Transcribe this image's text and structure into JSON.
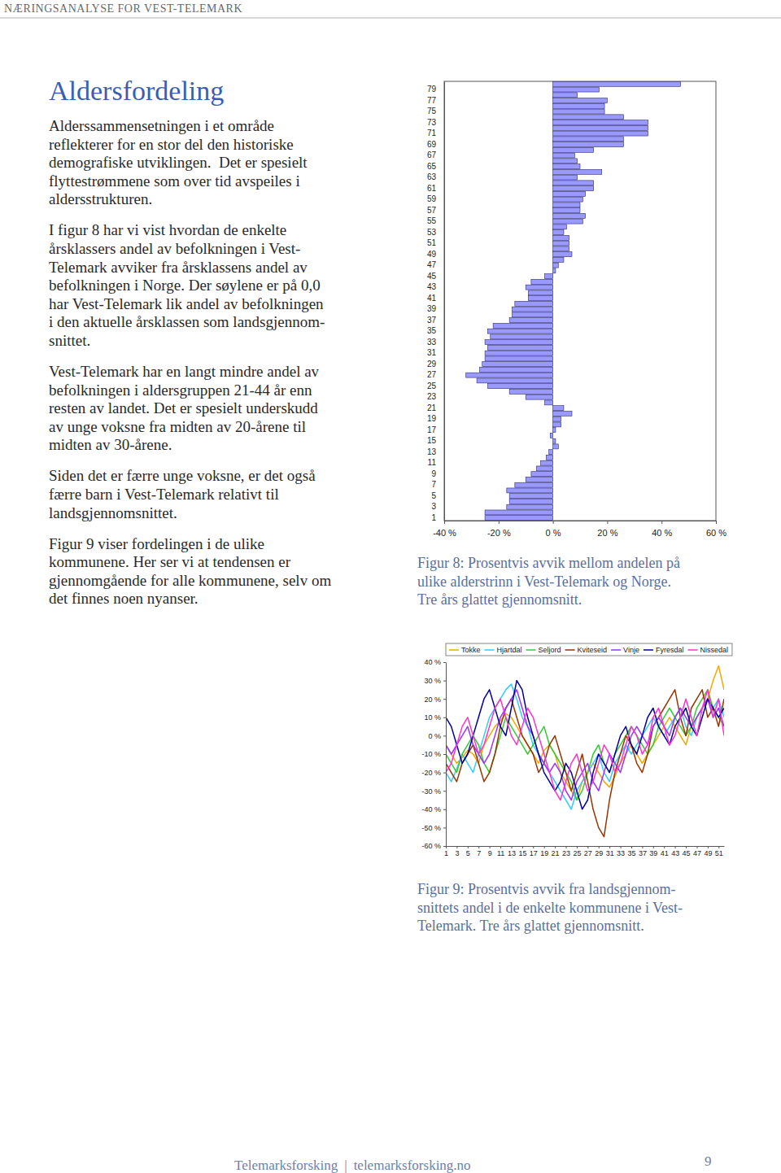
{
  "header": "NÆRINGSANALYSE FOR VEST-TELEMARK",
  "title": "Aldersfordeling",
  "paragraphs": [
    [
      "Alderssammensetningen i et område",
      "reflekterer for en stor del den historiske",
      "demografiske utviklingen.  Det er spesielt",
      "flyttestrømmene som over tid avspeiles i",
      "aldersstrukturen."
    ],
    [
      "I figur 8 har vi vist hvordan de enkelte",
      "årsklassers andel av befolkningen i Vest-",
      "Telemark avviker fra årsklassens andel av",
      "befolkningen i Norge. Der søylene er på 0,0",
      "har Vest-Telemark lik andel av befolkningen",
      "i den aktuelle årsklassen som landsgjennom-",
      "snittet."
    ],
    [
      "Vest-Telemark har en langt mindre andel av",
      "befolkningen i aldersgruppen 21-44 år enn",
      "resten av landet. Det er spesielt underskudd",
      "av unge voksne fra midten av 20-årene til",
      "midten av 30-årene."
    ],
    [
      "Siden det er færre unge voksne, er det også",
      "færre barn i Vest-Telemark relativt til",
      "landsgjennomsnittet."
    ],
    [
      "Figur 9 viser fordelingen i de ulike",
      "kommunene. Her ser vi at tendensen er",
      "gjennomgående for alle kommunene, selv om",
      "det finnes noen nyanser."
    ]
  ],
  "figure_captions": [
    [
      "Figur 8: Prosentvis avvik mellom andelen på",
      "ulike alderstrinn i Vest-Telemark og Norge.",
      "Tre års glattet gjennomsnitt."
    ],
    [
      "Figur 9: Prosentvis avvik fra landsgjennom-",
      "snittets andel i de enkelte kommunene i Vest-",
      "Telemark. Tre års glattet gjennomsnitt."
    ]
  ],
  "footer": {
    "left": "Telemarksforsking",
    "separator": "|",
    "right": "telemarksforsking.no",
    "page": "9"
  },
  "chart_data": [
    {
      "type": "bar",
      "orientation": "horizontal",
      "color": "#9999ff",
      "categories": [
        "1",
        null,
        "3",
        null,
        "5",
        null,
        "7",
        null,
        "9",
        null,
        "11",
        null,
        "13",
        null,
        "15",
        null,
        "17",
        null,
        "19",
        null,
        "21",
        null,
        "23",
        null,
        "25",
        null,
        "27",
        null,
        "29",
        null,
        "31",
        null,
        "33",
        null,
        "35",
        null,
        "37",
        null,
        "39",
        null,
        "41",
        null,
        "43",
        null,
        "45",
        null,
        "47",
        null,
        "49",
        null,
        "51",
        null,
        "53",
        null,
        "55",
        null,
        "57",
        null,
        "59",
        null,
        "61",
        null,
        "63",
        null,
        "65",
        null,
        "67",
        null,
        "69",
        null,
        "71",
        null,
        "73",
        null,
        "75",
        null,
        "77",
        null,
        "79",
        null
      ],
      "values": [
        -25,
        -25,
        -17,
        -16,
        -16,
        -17,
        -14,
        -10,
        -8,
        -6,
        -4.5,
        -2.5,
        -1.5,
        2,
        1,
        -1,
        1,
        3,
        3,
        7,
        4,
        -3,
        -10,
        -16,
        -24,
        -28,
        -32,
        -27,
        -26,
        -25,
        -25,
        -24,
        -25,
        -23,
        -24,
        -22,
        -16,
        -15,
        -15,
        -14,
        -9,
        -9,
        -10,
        -8,
        -3,
        1,
        2,
        4,
        7,
        6,
        6,
        6,
        4,
        5,
        11,
        12,
        10,
        10,
        11,
        12,
        15,
        15,
        9,
        18,
        10,
        9,
        8,
        15,
        26,
        26,
        35,
        35,
        35,
        26,
        19,
        19,
        20,
        9,
        17,
        47
      ],
      "xlim": [
        -40,
        60
      ],
      "xticks": [
        {
          "value": -40,
          "label": "-40 %"
        },
        {
          "value": -20,
          "label": "-20 %"
        },
        {
          "value": 0,
          "label": "0 %"
        },
        {
          "value": 20,
          "label": "20 %"
        },
        {
          "value": 40,
          "label": "40 %"
        },
        {
          "value": 60,
          "label": "60 %"
        }
      ]
    },
    {
      "type": "line",
      "legend": "top",
      "x": [
        1,
        2,
        3,
        4,
        5,
        6,
        7,
        8,
        9,
        10,
        11,
        12,
        13,
        14,
        15,
        16,
        17,
        18,
        19,
        20,
        21,
        22,
        23,
        24,
        25,
        26,
        27,
        28,
        29,
        30,
        31,
        32,
        33,
        34,
        35,
        36,
        37,
        38,
        39,
        40,
        41,
        42,
        43,
        44,
        45,
        46,
        47,
        48,
        49,
        50,
        51,
        52
      ],
      "xlim": [
        1,
        52
      ],
      "xticks": [
        1,
        3,
        5,
        7,
        9,
        11,
        13,
        15,
        17,
        19,
        21,
        23,
        25,
        27,
        29,
        31,
        33,
        35,
        37,
        39,
        41,
        43,
        45,
        47,
        49,
        51
      ],
      "ylim": [
        -60,
        40
      ],
      "yticks": [
        {
          "value": -60,
          "label": "-60 %"
        },
        {
          "value": -50,
          "label": "-50 %"
        },
        {
          "value": -40,
          "label": "-40 %"
        },
        {
          "value": -30,
          "label": "-30 %"
        },
        {
          "value": -20,
          "label": "-20 %"
        },
        {
          "value": -10,
          "label": "-10 %"
        },
        {
          "value": 0,
          "label": "0 %"
        },
        {
          "value": 10,
          "label": "10 %"
        },
        {
          "value": 20,
          "label": "20 %"
        },
        {
          "value": 30,
          "label": "30 %"
        },
        {
          "value": 40,
          "label": "40 %"
        }
      ],
      "series": [
        {
          "name": "Tokke",
          "color": "#f5a800",
          "values": [
            -5,
            -10,
            -15,
            -12,
            -8,
            -10,
            -15,
            -5,
            0,
            5,
            8,
            12,
            10,
            5,
            0,
            -5,
            -10,
            -15,
            -8,
            -5,
            -10,
            -20,
            -25,
            -30,
            -35,
            -25,
            -20,
            -15,
            -20,
            -25,
            -28,
            -22,
            -15,
            -10,
            -5,
            -10,
            -15,
            -10,
            -5,
            0,
            5,
            10,
            5,
            0,
            -5,
            5,
            10,
            15,
            20,
            30,
            38,
            25
          ]
        },
        {
          "name": "Hjartdal",
          "color": "#33ccff",
          "values": [
            -20,
            -25,
            -18,
            -10,
            -15,
            -20,
            -10,
            0,
            10,
            15,
            20,
            25,
            28,
            20,
            10,
            5,
            -5,
            -10,
            -15,
            -20,
            -25,
            -30,
            -35,
            -40,
            -30,
            -25,
            -20,
            -15,
            -10,
            -20,
            -25,
            -15,
            -10,
            -5,
            -10,
            -5,
            0,
            5,
            10,
            5,
            0,
            5,
            10,
            15,
            5,
            0,
            10,
            15,
            20,
            15,
            20,
            10
          ]
        },
        {
          "name": "Seljord",
          "color": "#33cc33",
          "values": [
            -10,
            -15,
            -20,
            -10,
            -5,
            0,
            -5,
            -15,
            -20,
            -10,
            0,
            10,
            5,
            0,
            -5,
            -10,
            -5,
            0,
            5,
            -5,
            -10,
            -15,
            -20,
            -25,
            -35,
            -30,
            -20,
            -10,
            -5,
            -15,
            -20,
            -10,
            -5,
            0,
            5,
            0,
            -5,
            -10,
            -5,
            5,
            10,
            15,
            10,
            5,
            0,
            5,
            15,
            20,
            25,
            15,
            10,
            5
          ]
        },
        {
          "name": "Kviteseid",
          "color": "#993300",
          "values": [
            -15,
            -20,
            -25,
            -15,
            -10,
            -5,
            -15,
            -25,
            -20,
            -10,
            5,
            15,
            20,
            10,
            0,
            -5,
            -10,
            -20,
            -15,
            -5,
            0,
            -10,
            -20,
            -30,
            -20,
            -10,
            -25,
            -40,
            -50,
            -55,
            -35,
            -20,
            -10,
            0,
            -5,
            -15,
            -20,
            -10,
            5,
            10,
            15,
            20,
            25,
            10,
            0,
            15,
            20,
            25,
            10,
            15,
            5,
            20
          ]
        },
        {
          "name": "Vinje",
          "color": "#9933ff",
          "values": [
            -5,
            -10,
            -5,
            0,
            5,
            -5,
            -10,
            -15,
            -10,
            0,
            10,
            15,
            20,
            25,
            15,
            5,
            0,
            -10,
            -15,
            -20,
            -15,
            -20,
            -30,
            -35,
            -25,
            -20,
            -15,
            -25,
            -30,
            -20,
            -10,
            -15,
            -20,
            -10,
            0,
            5,
            0,
            -5,
            5,
            10,
            5,
            0,
            10,
            15,
            10,
            5,
            10,
            15,
            20,
            10,
            15,
            5
          ]
        },
        {
          "name": "Fyresdal",
          "color": "#000099",
          "values": [
            10,
            5,
            -5,
            -15,
            -10,
            0,
            10,
            20,
            25,
            15,
            5,
            0,
            15,
            30,
            25,
            10,
            0,
            -10,
            -20,
            -25,
            -30,
            -25,
            -15,
            -20,
            -30,
            -40,
            -35,
            -20,
            -10,
            -15,
            -20,
            -10,
            0,
            5,
            -5,
            -10,
            0,
            10,
            15,
            5,
            0,
            -5,
            5,
            10,
            15,
            5,
            0,
            10,
            20,
            15,
            10,
            15
          ]
        },
        {
          "name": "Nissedal",
          "color": "#ff33cc",
          "values": [
            -20,
            -15,
            -5,
            5,
            10,
            0,
            -10,
            -5,
            5,
            15,
            20,
            10,
            0,
            -5,
            5,
            15,
            10,
            0,
            -10,
            -20,
            -30,
            -35,
            -25,
            -15,
            -10,
            -20,
            -30,
            -25,
            -15,
            -5,
            -10,
            -20,
            -15,
            -5,
            5,
            0,
            -10,
            -5,
            10,
            15,
            5,
            -5,
            0,
            10,
            20,
            10,
            0,
            15,
            25,
            10,
            20,
            0
          ]
        }
      ]
    }
  ]
}
